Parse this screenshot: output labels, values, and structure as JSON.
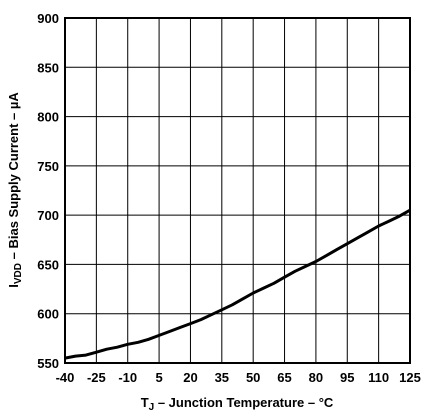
{
  "chart_data": {
    "type": "line",
    "xlabel": "T",
    "xlabel_sub": "J",
    "xlabel_rest": "– Junction Temperature – °C",
    "ylabel": "I",
    "ylabel_sub": "VDD",
    "ylabel_rest": "– Bias Supply Current – µA",
    "xlim": [
      -40,
      125
    ],
    "ylim": [
      550,
      900
    ],
    "grid": true,
    "x_ticks": [
      -40,
      -25,
      -10,
      5,
      20,
      35,
      50,
      65,
      80,
      95,
      110,
      125
    ],
    "x_tick_labels": [
      "-40",
      "-25",
      "-10",
      "5",
      "20",
      "35",
      "50",
      "65",
      "80",
      "95",
      "110",
      "125"
    ],
    "y_ticks": [
      550,
      600,
      650,
      700,
      750,
      800,
      850,
      900
    ],
    "y_tick_labels": [
      "550",
      "600",
      "650",
      "700",
      "750",
      "800",
      "850",
      "900"
    ],
    "series": [
      {
        "x": [
          -40,
          -35,
          -30,
          -25,
          -20,
          -15,
          -10,
          -5,
          0,
          5,
          10,
          15,
          20,
          25,
          30,
          35,
          40,
          45,
          50,
          55,
          60,
          65,
          70,
          75,
          80,
          85,
          90,
          95,
          100,
          105,
          110,
          115,
          120,
          125
        ],
        "y": [
          555,
          557,
          558,
          561,
          564,
          566,
          569,
          571,
          574,
          578,
          582,
          586,
          590,
          594,
          599,
          604,
          609,
          615,
          621,
          626,
          631,
          637,
          643,
          648,
          653,
          659,
          665,
          671,
          677,
          683,
          689,
          694,
          699,
          705
        ]
      }
    ]
  }
}
